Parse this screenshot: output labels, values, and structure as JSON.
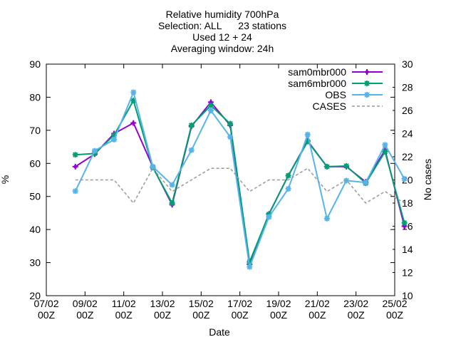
{
  "chart_data": {
    "type": "line",
    "title_lines": [
      "Relative humidity 700hPa",
      "Selection: ALL      23 stations",
      "Used 12 + 24",
      "Averaging window: 24h"
    ],
    "xlabel": "Date",
    "ylabel": "%",
    "y2label": "No cases",
    "x_ticks": [
      {
        "date": "07/02",
        "time": "00Z",
        "day": 0
      },
      {
        "date": "09/02",
        "time": "00Z",
        "day": 2
      },
      {
        "date": "11/02",
        "time": "00Z",
        "day": 4
      },
      {
        "date": "13/02",
        "time": "00Z",
        "day": 6
      },
      {
        "date": "15/02",
        "time": "00Z",
        "day": 8
      },
      {
        "date": "17/02",
        "time": "00Z",
        "day": 10
      },
      {
        "date": "19/02",
        "time": "00Z",
        "day": 12
      },
      {
        "date": "21/02",
        "time": "00Z",
        "day": 14
      },
      {
        "date": "23/02",
        "time": "00Z",
        "day": 16
      },
      {
        "date": "25/02",
        "time": "00Z",
        "day": 18
      }
    ],
    "x": [
      "08/02 12Z",
      "09/02 12Z",
      "10/02 12Z",
      "11/02 12Z",
      "12/02 12Z",
      "13/02 12Z",
      "14/02 12Z",
      "15/02 12Z",
      "16/02 12Z",
      "17/02 12Z",
      "18/02 12Z",
      "19/02 12Z",
      "20/02 12Z",
      "21/02 12Z",
      "22/02 12Z",
      "23/02 12Z",
      "24/02 12Z",
      "25/02 12Z"
    ],
    "xlim": [
      "07/02 00Z",
      "25/02 00Z"
    ],
    "ylim": [
      20,
      90
    ],
    "y_ticks": [
      20,
      30,
      40,
      50,
      60,
      70,
      80,
      90
    ],
    "y2lim": [
      10,
      30
    ],
    "y2_ticks": [
      10,
      12,
      14,
      16,
      18,
      20,
      22,
      24,
      26,
      28,
      30
    ],
    "legend_position": "top-right",
    "grid": false,
    "series": [
      {
        "name": "sam0mbr000",
        "color": "#9400d3",
        "style": "solid",
        "marker": "plus",
        "axis": "y1",
        "values": [
          59,
          62.8,
          69,
          72.2,
          59,
          47.5,
          71.2,
          78.5,
          71.5,
          29.5,
          44.7,
          56.3,
          66.8,
          59,
          59,
          54.4,
          64,
          41
        ]
      },
      {
        "name": "sam6mbr000",
        "color": "#009e73",
        "style": "solid",
        "marker": "x",
        "axis": "y1",
        "values": [
          62.6,
          63,
          68.5,
          79,
          58.8,
          48,
          71.5,
          77.5,
          72,
          30.2,
          44.6,
          56.3,
          66.6,
          59,
          59.2,
          54,
          63.5,
          42
        ]
      },
      {
        "name": "OBS",
        "color": "#56b4e9",
        "style": "solid",
        "marker": "star",
        "axis": "y1",
        "values": [
          51.6,
          63.8,
          67.2,
          81.5,
          59,
          53.5,
          64,
          76,
          68,
          28.7,
          43.8,
          52.3,
          68.7,
          43.3,
          54.8,
          54.2,
          65.6,
          55.3
        ]
      },
      {
        "name": "CASES",
        "color": "#999999",
        "style": "dashed",
        "marker": "none",
        "axis": "y2",
        "values": [
          20,
          20,
          20,
          18,
          21,
          19,
          20,
          21,
          21,
          19,
          20,
          20,
          21,
          19,
          20,
          18,
          19,
          18
        ]
      }
    ]
  }
}
